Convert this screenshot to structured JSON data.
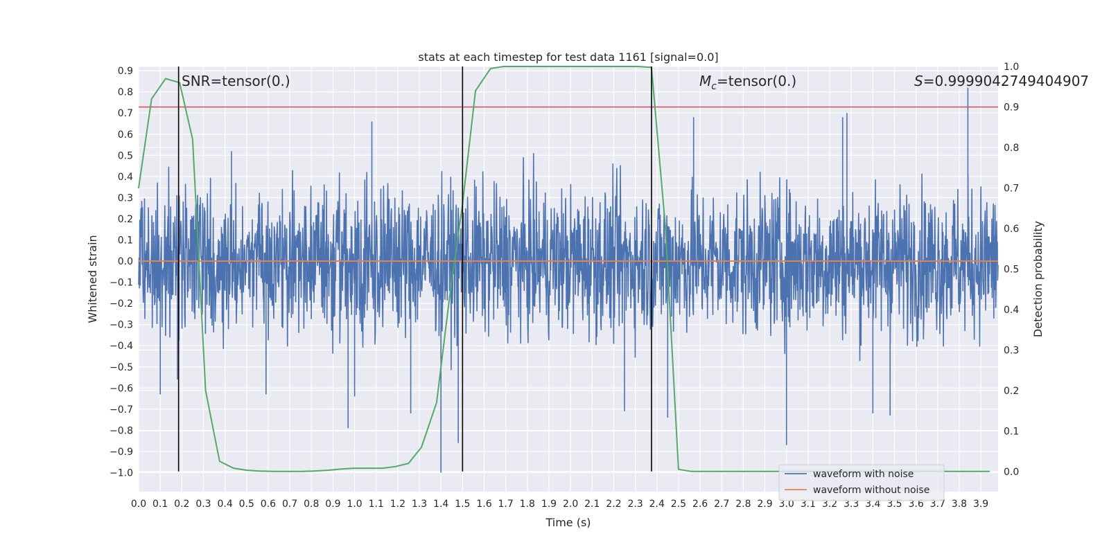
{
  "chart_data": {
    "type": "line",
    "title": "stats at each timestep for test data 1161 [signal=0.0]",
    "xlabel": "Time (s)",
    "ylabel": "Whitened strain",
    "y2label": "Detection probability",
    "xlim": [
      0.0,
      3.98
    ],
    "ylim": [
      -1.09,
      0.92
    ],
    "y2lim": [
      -0.05,
      1.0
    ],
    "xticks": [
      "0.0",
      "0.1",
      "0.2",
      "0.3",
      "0.4",
      "0.5",
      "0.6",
      "0.7",
      "0.8",
      "0.9",
      "1.0",
      "1.1",
      "1.2",
      "1.3",
      "1.4",
      "1.5",
      "1.6",
      "1.7",
      "1.8",
      "1.9",
      "2.0",
      "2.1",
      "2.2",
      "2.3",
      "2.4",
      "2.5",
      "2.6",
      "2.7",
      "2.8",
      "2.9",
      "3.0",
      "3.1",
      "3.2",
      "3.3",
      "3.4",
      "3.5",
      "3.6",
      "3.7",
      "3.8",
      "3.9"
    ],
    "yticks": [
      "0.9",
      "0.8",
      "0.7",
      "0.6",
      "0.5",
      "0.4",
      "0.3",
      "0.2",
      "0.1",
      "0.0",
      "-0.1",
      "-0.2",
      "-0.3",
      "-0.4",
      "-0.5",
      "-0.6",
      "-0.7",
      "-0.8",
      "-0.9",
      "-1.0"
    ],
    "y2ticks": [
      "1.0",
      "0.9",
      "0.8",
      "0.7",
      "0.6",
      "0.5",
      "0.4",
      "0.3",
      "0.2",
      "0.1",
      "0.0"
    ],
    "annotations": {
      "snr": "SNR=tensor(0.)",
      "mc_symbol": "M",
      "mc_sub": "c",
      "mc_rest": "=tensor(0.)",
      "s_symbol": "S",
      "s_rest": "=0.9999042749404907"
    },
    "noise": {
      "name": "waveform with noise",
      "color": "#4c72b0",
      "amplitude": 0.17,
      "spikes": [
        {
          "t": 0.1,
          "v": -0.63
        },
        {
          "t": 0.18,
          "v": -0.56
        },
        {
          "t": 0.43,
          "v": 0.52
        },
        {
          "t": 0.59,
          "v": -0.63
        },
        {
          "t": 0.97,
          "v": -0.79
        },
        {
          "t": 1.0,
          "v": -0.64
        },
        {
          "t": 1.08,
          "v": 0.66
        },
        {
          "t": 1.26,
          "v": -0.72
        },
        {
          "t": 1.4,
          "v": -1.0
        },
        {
          "t": 1.48,
          "v": -0.86
        },
        {
          "t": 2.25,
          "v": -0.71
        },
        {
          "t": 2.45,
          "v": -0.74
        },
        {
          "t": 2.57,
          "v": 0.68
        },
        {
          "t": 3.0,
          "v": -0.87
        },
        {
          "t": 3.26,
          "v": 0.68
        },
        {
          "t": 3.28,
          "v": 0.7
        },
        {
          "t": 3.4,
          "v": -0.72
        },
        {
          "t": 3.48,
          "v": -0.73
        },
        {
          "t": 3.84,
          "v": 0.82
        }
      ]
    },
    "clean": {
      "name": "waveform without noise",
      "color": "#dd8452",
      "value": 0.0
    },
    "threshold": {
      "value": 0.9,
      "color": "#c44e52",
      "axis": "y2"
    },
    "detection": {
      "color": "#55a868",
      "t": [
        0.0,
        0.06,
        0.125,
        0.19,
        0.25,
        0.31,
        0.375,
        0.44,
        0.5,
        0.56,
        0.63,
        0.69,
        0.75,
        0.81,
        0.88,
        0.94,
        1.0,
        1.06,
        1.13,
        1.19,
        1.25,
        1.31,
        1.38,
        1.44,
        1.5,
        1.56,
        1.63,
        1.69,
        1.75,
        1.81,
        1.88,
        1.94,
        2.0,
        2.06,
        2.13,
        2.19,
        2.25,
        2.31,
        2.375,
        2.44,
        2.5,
        2.56,
        2.63,
        2.69,
        2.75,
        2.81,
        2.88,
        2.94,
        3.0,
        3.06,
        3.13,
        3.19,
        3.25,
        3.31,
        3.38,
        3.44,
        3.5,
        3.56,
        3.63,
        3.69,
        3.75,
        3.81,
        3.88,
        3.94
      ],
      "p": [
        0.7,
        0.92,
        0.97,
        0.96,
        0.82,
        0.2,
        0.025,
        0.008,
        0.003,
        0.001,
        0.0,
        0.0,
        0.0,
        0.001,
        0.003,
        0.006,
        0.008,
        0.008,
        0.008,
        0.012,
        0.02,
        0.06,
        0.17,
        0.43,
        0.66,
        0.94,
        0.995,
        1.0,
        1.0,
        1.0,
        1.0,
        1.0,
        1.0,
        1.0,
        1.0,
        1.0,
        1.0,
        1.0,
        0.998,
        0.6,
        0.005,
        0.0,
        0.0,
        0.0,
        0.0,
        0.0,
        0.0,
        0.0,
        0.0,
        0.0,
        0.0,
        0.0,
        0.0,
        0.0,
        0.0,
        0.0,
        0.0,
        0.0,
        0.0,
        0.0,
        0.0,
        0.0,
        0.0,
        0.0
      ]
    },
    "vlines": [
      0.185,
      1.5,
      2.375
    ],
    "legend": {
      "position": "lower-right"
    }
  }
}
